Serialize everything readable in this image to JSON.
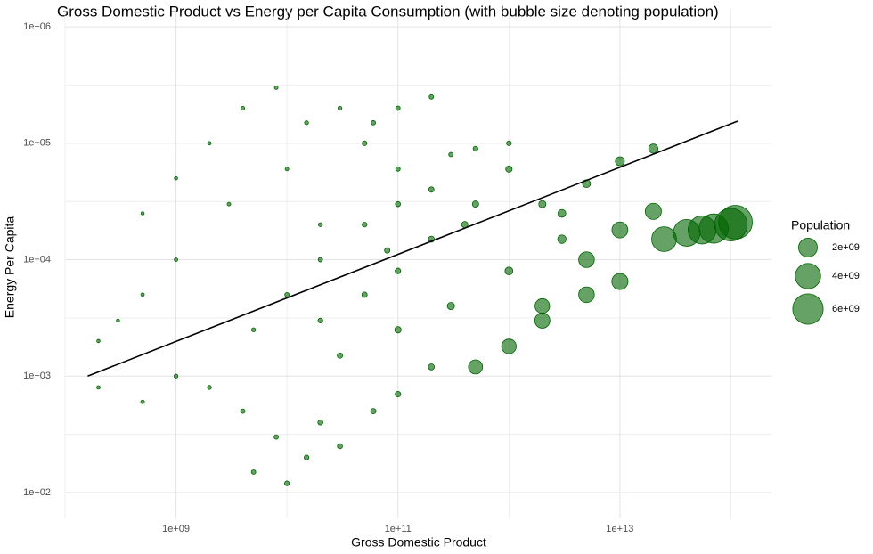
{
  "chart_data": {
    "type": "scatter",
    "title": "Gross Domestic Product vs Energy per Capita Consumption (with bubble size denoting population)",
    "x_label": "Gross Domestic Product",
    "y_label": "Energy Per Capita",
    "log_x": true,
    "log_y": true,
    "grid": true,
    "color": "#006400",
    "xlim": [
      100000000,
      232000000000000
    ],
    "ylim": [
      60,
      1400000
    ],
    "xticks": [
      {
        "value": 1000000000,
        "label": "1e+09"
      },
      {
        "value": 100000000000,
        "label": "1e+11"
      },
      {
        "value": 10000000000000,
        "label": "1e+13"
      }
    ],
    "x_minor_ticks": [
      100000000,
      10000000000,
      1000000000000,
      100000000000000
    ],
    "yticks": [
      {
        "value": 100,
        "label": "1e+02"
      },
      {
        "value": 1000,
        "label": "1e+03"
      },
      {
        "value": 10000,
        "label": "1e+04"
      },
      {
        "value": 100000,
        "label": "1e+05"
      },
      {
        "value": 1000000,
        "label": "1e+06"
      }
    ],
    "y_minor_ticks": [
      316,
      3162,
      31623,
      316228
    ],
    "x": [
      300000000,
      500000000,
      1000000000,
      2000000000,
      4000000000,
      8000000000,
      15000000000,
      30000000000,
      60000000000,
      100000000000,
      200000000000,
      50000000000,
      10000000000,
      3000000000,
      1000000000,
      500000000,
      200000000,
      200000000,
      500000000,
      1000000000,
      2000000000,
      4000000000,
      8000000000,
      15000000000,
      30000000000,
      60000000000,
      100000000000,
      200000000000,
      5000000000,
      10000000000,
      20000000000,
      20000000000,
      50000000000,
      100000000000,
      200000000000,
      500000000000,
      1000000000000,
      200000000000,
      100000000000,
      50000000000,
      20000000000,
      10000000000,
      5000000000,
      30000000000,
      100000000000,
      300000000000,
      1000000000000,
      3000000000000,
      100000000000,
      300000000000,
      1000000000000,
      500000000000,
      20000000000,
      80000000000,
      400000000000,
      2000000000000,
      5000000000000,
      10000000000000,
      20000000000000,
      3000000000000,
      500000000000,
      1000000000000,
      2000000000000,
      5000000000000,
      10000000000000,
      2000000000000,
      5000000000000,
      10000000000000,
      20000000000000,
      25000000000000,
      40000000000000,
      55000000000000,
      70000000000000,
      100000000000000,
      110000000000000
    ],
    "values": [
      3000,
      25000,
      50000,
      100000,
      200000,
      300000,
      150000,
      200000,
      150000,
      200000,
      250000,
      100000,
      60000,
      30000,
      10000,
      5000,
      2000,
      800,
      600,
      1000,
      800,
      500,
      300,
      200,
      250,
      500,
      700,
      1200,
      150,
      120,
      400,
      3000,
      5000,
      8000,
      15000,
      30000,
      60000,
      40000,
      30000,
      20000,
      10000,
      5000,
      2500,
      1500,
      2500,
      4000,
      8000,
      15000,
      60000,
      80000,
      100000,
      90000,
      20000,
      12000,
      20000,
      30000,
      45000,
      70000,
      90000,
      25000,
      1200,
      1800,
      3000,
      5000,
      6500,
      4000,
      10000,
      18000,
      26000,
      15000,
      17000,
      18000,
      18500,
      20000,
      21000
    ],
    "sizes": [
      1000000,
      1000000,
      2000000,
      3000000,
      5000000,
      5000000,
      10000000,
      10000000,
      20000000,
      20000000,
      20000000,
      30000000,
      5000000,
      5000000,
      4000000,
      3000000,
      2000000,
      3000000,
      5000000,
      10000000,
      10000000,
      20000000,
      20000000,
      30000000,
      40000000,
      50000000,
      60000000,
      80000000,
      20000000,
      30000000,
      40000000,
      30000000,
      50000000,
      60000000,
      80000000,
      100000000,
      100000000,
      50000000,
      40000000,
      30000000,
      20000000,
      20000000,
      10000000,
      50000000,
      100000000,
      150000000,
      200000000,
      250000000,
      20000000,
      20000000,
      30000000,
      30000000,
      10000000,
      50000000,
      100000000,
      150000000,
      200000000,
      300000000,
      320000000,
      200000000,
      1000000000,
      1100000000,
      1200000000,
      1300000000,
      1400000000,
      1100000000,
      1300000000,
      1350000000,
      1400000000,
      3800000000,
      4500000000,
      5000000000,
      5500000000,
      7000000000,
      7500000000
    ],
    "trend_line": {
      "x": [
        160000000,
        115000000000000
      ],
      "y": [
        1000,
        155000
      ],
      "color": "#000000"
    },
    "legend_title": "Population",
    "legend_sizes": [
      {
        "value": 2000000000,
        "label": "2e+09"
      },
      {
        "value": 4000000000,
        "label": "4e+09"
      },
      {
        "value": 6000000000,
        "label": "6e+09"
      }
    ]
  }
}
